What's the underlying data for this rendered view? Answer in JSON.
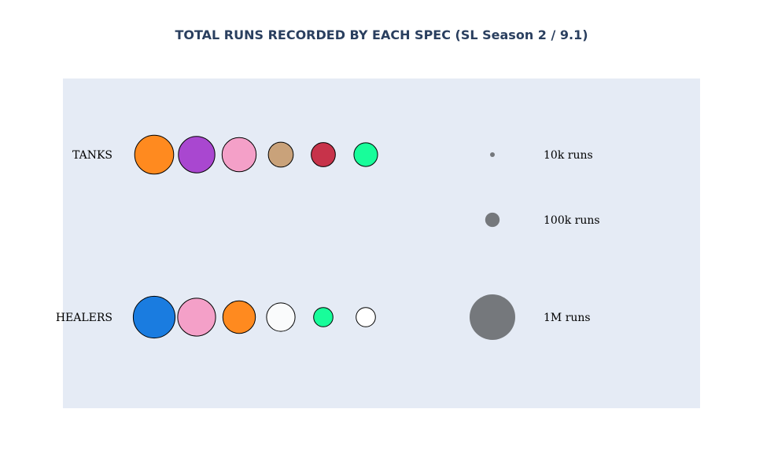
{
  "chart_data": {
    "type": "scatter",
    "title": "TOTAL RUNS RECORDED BY EACH SPEC (SL Season 2 / 9.1)",
    "rows": [
      {
        "label": "TANKS",
        "bubbles": [
          {
            "color": "#ff8a1f",
            "runs": 730000
          },
          {
            "color": "#a947d0",
            "runs": 640000
          },
          {
            "color": "#f4a0c8",
            "runs": 560000
          },
          {
            "color": "#c9a27a",
            "runs": 300000
          },
          {
            "color": "#c7334a",
            "runs": 280000
          },
          {
            "color": "#18fd9a",
            "runs": 270000
          }
        ]
      },
      {
        "label": "HEALERS",
        "bubbles": [
          {
            "color": "#1a7ce0",
            "runs": 840000
          },
          {
            "color": "#f4a0c8",
            "runs": 690000
          },
          {
            "color": "#ff8a1f",
            "runs": 510000
          },
          {
            "color": "#fafbfc",
            "runs": 390000
          },
          {
            "color": "#18fd9a",
            "runs": 180000
          },
          {
            "color": "#ffffff",
            "runs": 180000
          }
        ]
      }
    ],
    "size_legend": [
      {
        "label": "10k runs",
        "runs": 10000
      },
      {
        "label": "100k runs",
        "runs": 100000
      },
      {
        "label": "1M runs",
        "runs": 1000000
      }
    ],
    "legend_bubble_color": "#75787c",
    "plot_background": "#e5ebf5",
    "title_color": "#2a3f5f"
  }
}
